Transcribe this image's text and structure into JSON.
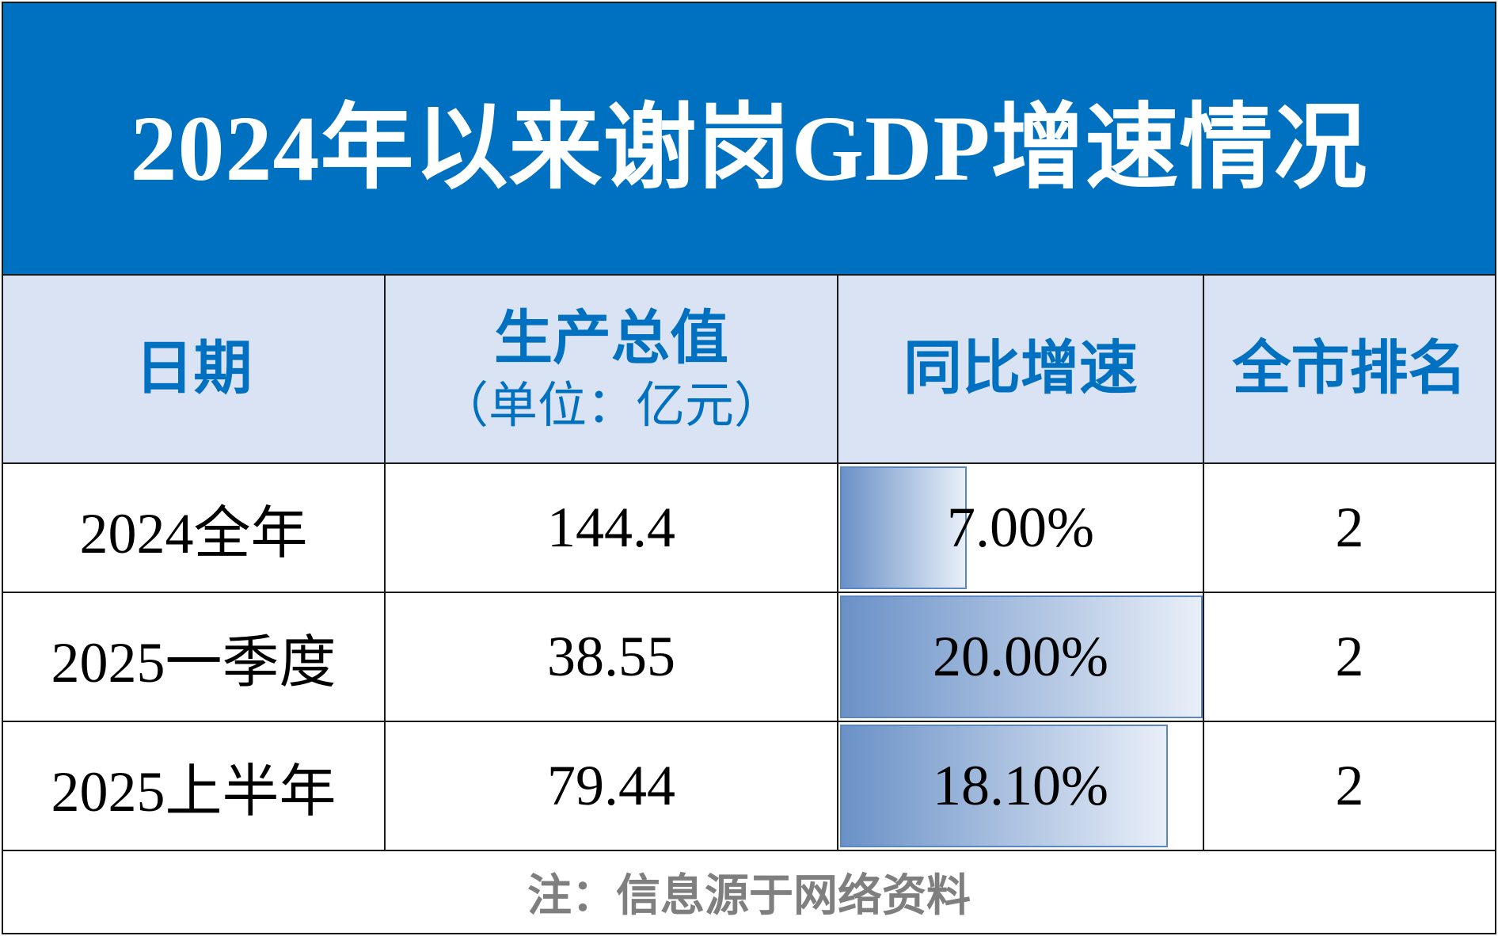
{
  "title": "2024年以来谢岗GDP增速情况",
  "columns": {
    "date": "日期",
    "gdp": "生产总值",
    "gdp_unit": "（单位：亿元）",
    "growth": "同比增速",
    "rank": "全市排名"
  },
  "rows": [
    {
      "date": "2024全年",
      "gdp": "144.4",
      "growth": "7.00%",
      "rank": "2"
    },
    {
      "date": "2025一季度",
      "gdp": "38.55",
      "growth": "20.00%",
      "rank": "2"
    },
    {
      "date": "2025上半年",
      "gdp": "79.44",
      "growth": "18.10%",
      "rank": "2"
    }
  ],
  "note": "注：信息源于网络资料",
  "colors": {
    "title_bg": "#0070c0",
    "header_bg": "#dae3f3",
    "header_text": "#0070c0",
    "rank_text": "#ff0000",
    "bar_start": "#6a91c7",
    "bar_end": "#e9eff8",
    "note_text": "#7f7f7f"
  },
  "chart_data": {
    "type": "table",
    "columns": [
      "日期",
      "生产总值（单位：亿元）",
      "同比增速",
      "全市排名"
    ],
    "rows": [
      [
        "2024全年",
        144.4,
        7.0,
        2
      ],
      [
        "2025一季度",
        38.55,
        20.0,
        2
      ],
      [
        "2025上半年",
        79.44,
        18.1,
        2
      ]
    ],
    "growth_bar_max": 20.0
  }
}
